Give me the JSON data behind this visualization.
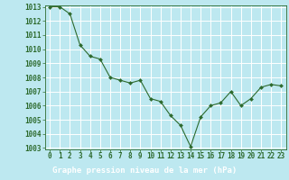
{
  "x": [
    0,
    1,
    2,
    3,
    4,
    5,
    6,
    7,
    8,
    9,
    10,
    11,
    12,
    13,
    14,
    15,
    16,
    17,
    18,
    19,
    20,
    21,
    22,
    23
  ],
  "y": [
    1013.0,
    1013.0,
    1012.5,
    1010.3,
    1009.5,
    1009.3,
    1008.0,
    1007.8,
    1007.6,
    1007.8,
    1006.5,
    1006.3,
    1005.3,
    1004.6,
    1003.1,
    1005.2,
    1006.0,
    1006.2,
    1007.0,
    1006.0,
    1006.5,
    1007.3,
    1007.5,
    1007.4
  ],
  "ylim": [
    1003,
    1013
  ],
  "xlim": [
    -0.5,
    23.5
  ],
  "yticks": [
    1003,
    1004,
    1005,
    1006,
    1007,
    1008,
    1009,
    1010,
    1011,
    1012,
    1013
  ],
  "xticks": [
    0,
    1,
    2,
    3,
    4,
    5,
    6,
    7,
    8,
    9,
    10,
    11,
    12,
    13,
    14,
    15,
    16,
    17,
    18,
    19,
    20,
    21,
    22,
    23
  ],
  "line_color": "#2d6a2d",
  "marker_color": "#2d6a2d",
  "bg_color": "#bde8f0",
  "footer_bg": "#3a7a3a",
  "grid_color": "#ffffff",
  "xlabel": "Graphe pression niveau de la mer (hPa)",
  "xlabel_color": "#ffffff",
  "tick_color": "#2d6a2d",
  "ytick_color": "#2d6a2d",
  "tick_fontsize": 5.5,
  "xlabel_fontsize": 6.5,
  "spine_color": "#2d6a2d"
}
